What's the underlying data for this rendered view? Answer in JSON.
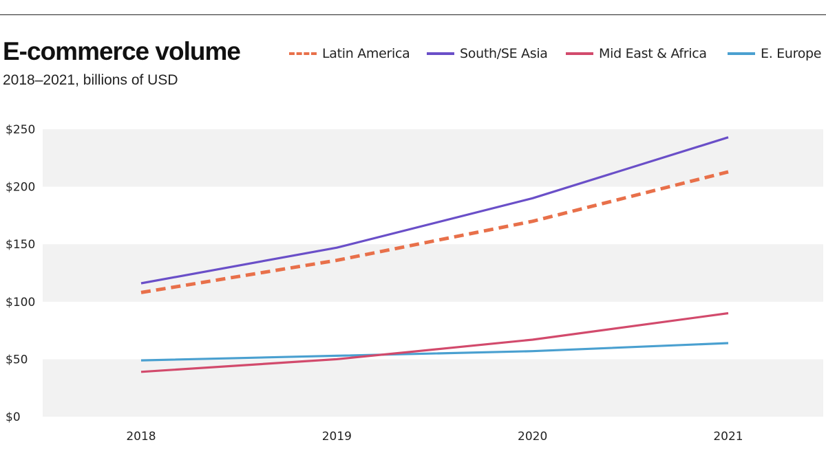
{
  "chart_data": {
    "type": "line",
    "title": "E-commerce volume",
    "subtitle": "2018–2021, billions of USD",
    "x": [
      "2018",
      "2019",
      "2020",
      "2021"
    ],
    "y_ticks": [
      "$0",
      "$50",
      "$100",
      "$150",
      "$200",
      "$250"
    ],
    "ylim": [
      0,
      250
    ],
    "y_tick_values": [
      0,
      50,
      100,
      150,
      200,
      250
    ],
    "grid": "alternating bands",
    "legend_placement": "top-right",
    "series": [
      {
        "name": "Latin America",
        "values": [
          108,
          136,
          170,
          213
        ],
        "color": "#e8704a",
        "dashed": true
      },
      {
        "name": "South/SE Asia",
        "values": [
          116,
          147,
          190,
          243
        ],
        "color": "#6a4fc8",
        "dashed": false
      },
      {
        "name": "Mid East & Africa",
        "values": [
          39,
          50,
          67,
          90
        ],
        "color": "#d24a6c",
        "dashed": false
      },
      {
        "name": "E. Europe",
        "values": [
          49,
          53,
          57,
          64
        ],
        "color": "#4aa0d0",
        "dashed": false
      }
    ],
    "band_color": "#f2f2f2"
  }
}
